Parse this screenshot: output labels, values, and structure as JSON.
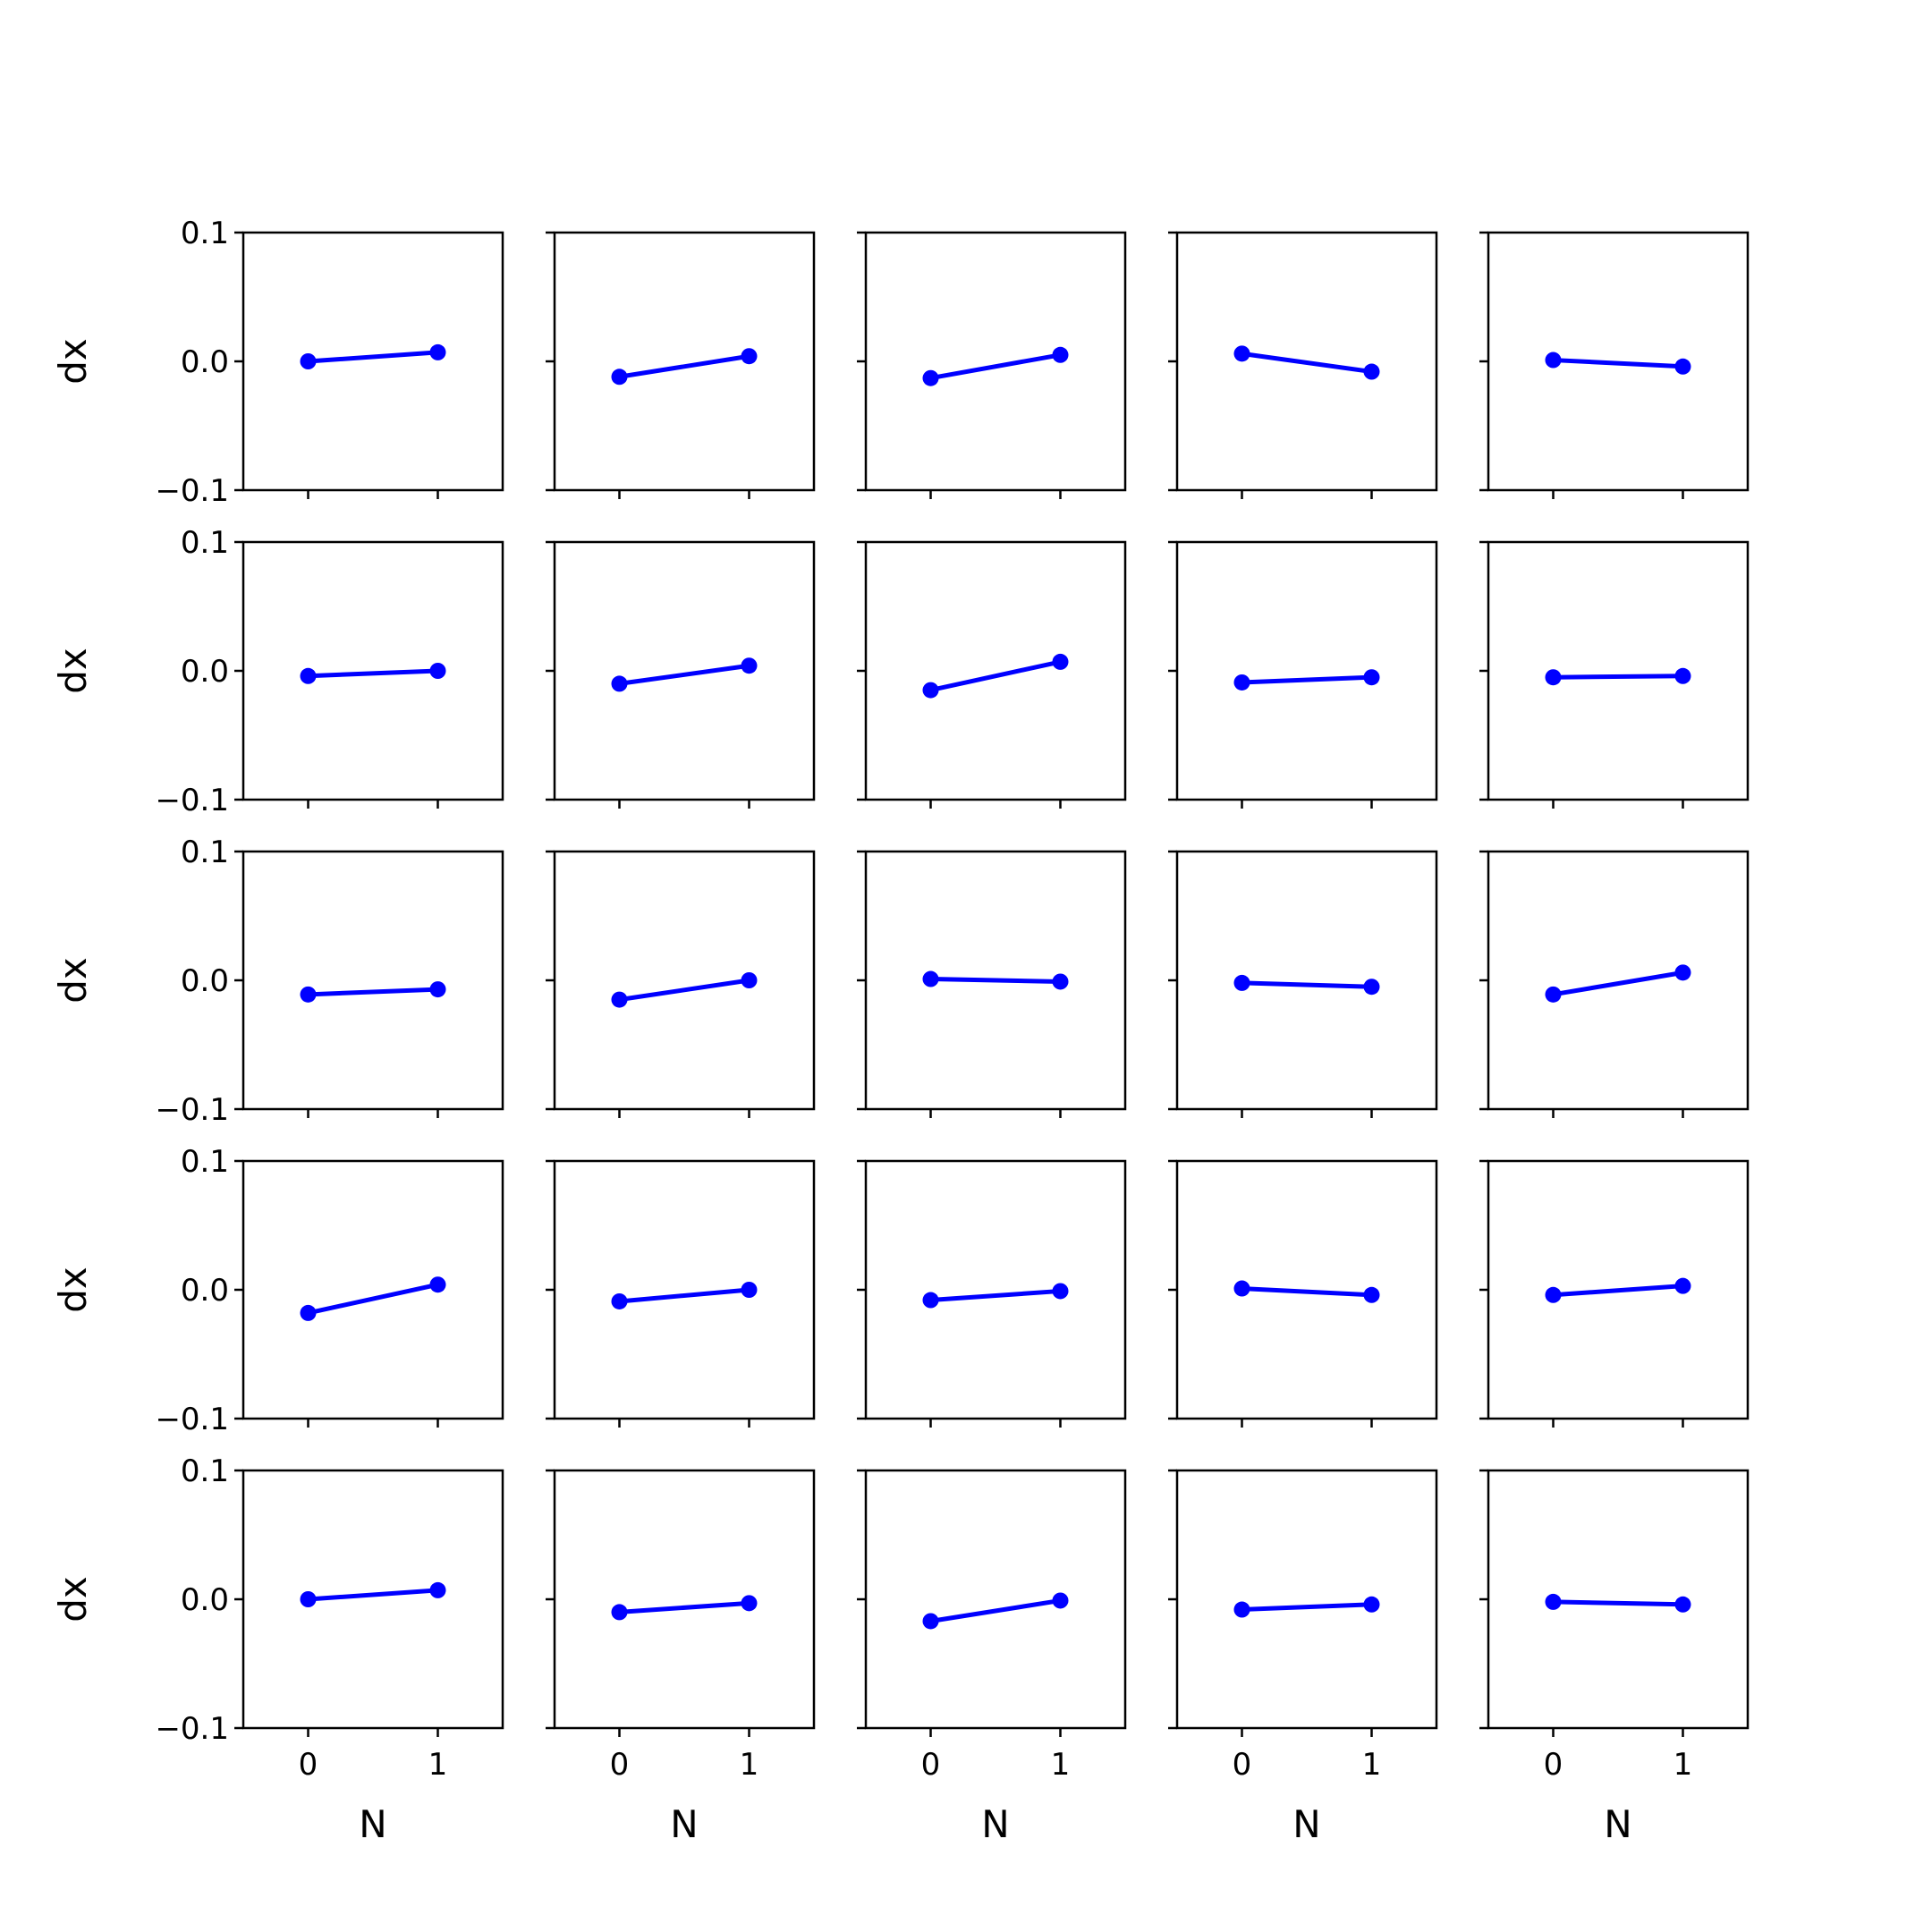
{
  "colors": {
    "series": "#0000ff",
    "axes": "#000000",
    "background": "#ffffff"
  },
  "chart_data": {
    "type": "line",
    "layout": "5x5 grid of small multiples",
    "shared_axes": {
      "xlabel": "N",
      "ylabel": "dx",
      "x_ticks": [
        0,
        1
      ],
      "x_tick_labels": [
        "0",
        "1"
      ],
      "y_ticks": [
        0.1,
        0.0,
        -0.1
      ],
      "y_tick_labels": [
        "0.1",
        "0.0",
        "−0.1"
      ],
      "xlim": [
        -0.5,
        1.5
      ],
      "ylim": [
        -0.1,
        0.1
      ],
      "grid": false,
      "marker": "circle"
    },
    "panels": [
      {
        "x": [
          0,
          1
        ],
        "y": [
          0.0,
          0.007
        ]
      },
      {
        "x": [
          0,
          1
        ],
        "y": [
          -0.012,
          0.004
        ]
      },
      {
        "x": [
          0,
          1
        ],
        "y": [
          -0.013,
          0.005
        ]
      },
      {
        "x": [
          0,
          1
        ],
        "y": [
          0.006,
          -0.008
        ]
      },
      {
        "x": [
          0,
          1
        ],
        "y": [
          0.001,
          -0.004
        ]
      },
      {
        "x": [
          0,
          1
        ],
        "y": [
          -0.004,
          0.0
        ]
      },
      {
        "x": [
          0,
          1
        ],
        "y": [
          -0.01,
          0.004
        ]
      },
      {
        "x": [
          0,
          1
        ],
        "y": [
          -0.015,
          0.007
        ]
      },
      {
        "x": [
          0,
          1
        ],
        "y": [
          -0.009,
          -0.005
        ]
      },
      {
        "x": [
          0,
          1
        ],
        "y": [
          -0.005,
          -0.004
        ]
      },
      {
        "x": [
          0,
          1
        ],
        "y": [
          -0.011,
          -0.007
        ]
      },
      {
        "x": [
          0,
          1
        ],
        "y": [
          -0.015,
          0.0
        ]
      },
      {
        "x": [
          0,
          1
        ],
        "y": [
          0.001,
          -0.001
        ]
      },
      {
        "x": [
          0,
          1
        ],
        "y": [
          -0.002,
          -0.005
        ]
      },
      {
        "x": [
          0,
          1
        ],
        "y": [
          -0.011,
          0.006
        ]
      },
      {
        "x": [
          0,
          1
        ],
        "y": [
          -0.018,
          0.004
        ]
      },
      {
        "x": [
          0,
          1
        ],
        "y": [
          -0.009,
          0.0
        ]
      },
      {
        "x": [
          0,
          1
        ],
        "y": [
          -0.008,
          -0.001
        ]
      },
      {
        "x": [
          0,
          1
        ],
        "y": [
          0.001,
          -0.004
        ]
      },
      {
        "x": [
          0,
          1
        ],
        "y": [
          -0.004,
          0.003
        ]
      },
      {
        "x": [
          0,
          1
        ],
        "y": [
          0.0,
          0.007
        ]
      },
      {
        "x": [
          0,
          1
        ],
        "y": [
          -0.01,
          -0.003
        ]
      },
      {
        "x": [
          0,
          1
        ],
        "y": [
          -0.017,
          -0.001
        ]
      },
      {
        "x": [
          0,
          1
        ],
        "y": [
          -0.008,
          -0.004
        ]
      },
      {
        "x": [
          0,
          1
        ],
        "y": [
          -0.002,
          -0.004
        ]
      }
    ]
  }
}
